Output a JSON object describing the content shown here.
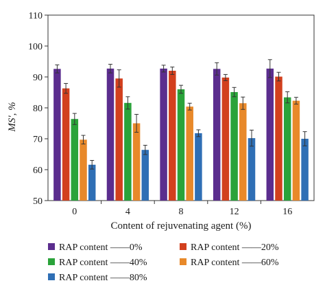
{
  "chart_data": {
    "type": "bar",
    "title": "",
    "xlabel": "Content of rejuvenating agent (%)",
    "ylabel": "MS', %",
    "ylim": [
      50,
      110
    ],
    "yticks": [
      50,
      60,
      70,
      80,
      90,
      100,
      110
    ],
    "categories": [
      "0",
      "4",
      "8",
      "12",
      "16"
    ],
    "legend_placement": "bottom",
    "grid": false,
    "series": [
      {
        "name": "RAP content ——0%",
        "color": "#5b2d8e",
        "values": [
          92.6,
          92.7,
          92.7,
          92.6,
          92.7
        ],
        "errors": [
          1.3,
          1.4,
          1.1,
          2.0,
          2.9
        ]
      },
      {
        "name": "RAP content ——20%",
        "color": "#d2401e",
        "values": [
          86.3,
          89.5,
          92.0,
          89.8,
          90.1
        ],
        "errors": [
          1.6,
          2.8,
          1.2,
          1.0,
          1.4
        ]
      },
      {
        "name": "RAP content ——40%",
        "color": "#2aa33a",
        "values": [
          76.4,
          81.6,
          86.0,
          85.1,
          83.4
        ],
        "errors": [
          1.8,
          2.0,
          1.3,
          1.5,
          1.8
        ]
      },
      {
        "name": "RAP content ——60%",
        "color": "#e8892a",
        "values": [
          69.7,
          75.0,
          80.4,
          81.5,
          82.3
        ],
        "errors": [
          1.4,
          2.9,
          1.1,
          2.0,
          1.1
        ]
      },
      {
        "name": "RAP content ——80%",
        "color": "#2f6fb5",
        "values": [
          61.6,
          66.4,
          71.8,
          70.2,
          70.0
        ],
        "errors": [
          1.4,
          1.5,
          1.1,
          2.6,
          2.3
        ]
      }
    ]
  }
}
